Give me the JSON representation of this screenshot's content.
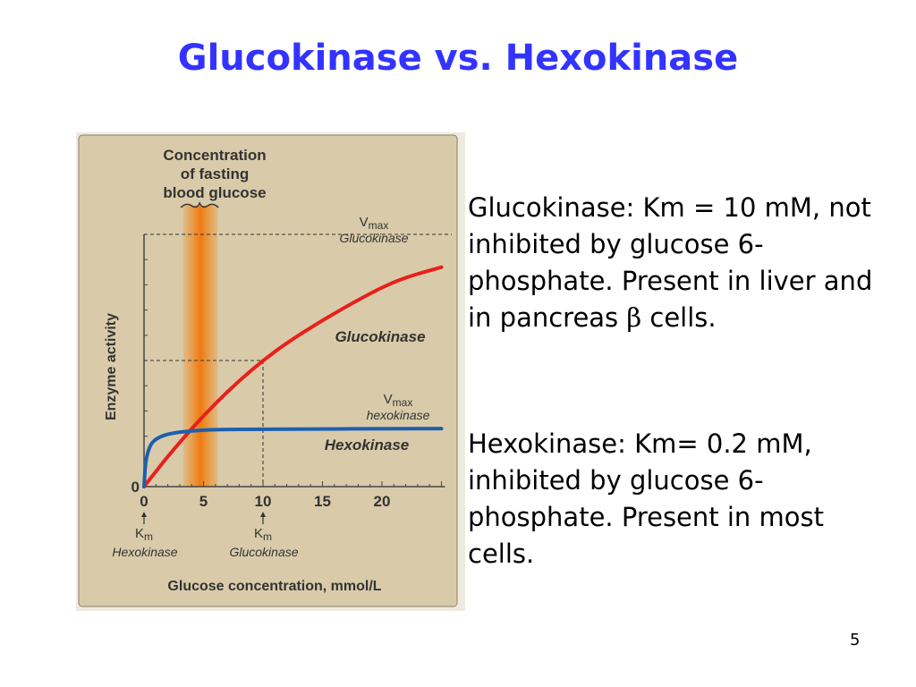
{
  "title": "Glucokinase vs. Hexokinase",
  "text": {
    "glucokinase": {
      "main": "Glucokinase: Km = 10 mM, not inhibited by glucose 6-phosphate.  Present in liver and in pancreas",
      "symbol": "β",
      "end": "cells."
    },
    "hexokinase": "Hexokinase:  Km= 0.2 mM, inhibited by glucose 6-phosphate.  Present in most cells."
  },
  "page_number": "5",
  "chart_data": {
    "type": "line",
    "xlabel": "Glucose concentration, mmol/L",
    "ylabel": "Enzyme activity",
    "x_ticks": [
      "0",
      "5",
      "10",
      "15",
      "20"
    ],
    "y_ticks": [
      "0"
    ],
    "xlim": [
      0,
      25
    ],
    "ylim": [
      0,
      1.1
    ],
    "grid": false,
    "background": "#d9cba9",
    "band": {
      "label": "Concentration of fasting blood glucose",
      "x_range": [
        3.3,
        6.2
      ],
      "color": "#f08a1a"
    },
    "annotations": {
      "vmax_gk": {
        "v": "V",
        "sub": "max",
        "name": "Glucokinase",
        "y": 1.0
      },
      "vmax_hk": {
        "v": "V",
        "sub": "max",
        "name": "hexokinase"
      },
      "km_hk": {
        "k": "K",
        "sub": "m",
        "name": "Hexokinase",
        "x": 0
      },
      "km_gk": {
        "k": "K",
        "sub": "m",
        "name": "Glucokinase",
        "x": 10,
        "y": 0.5
      }
    },
    "series": [
      {
        "name": "Glucokinase",
        "color": "#e8201c",
        "x": [
          0,
          1,
          2,
          4,
          6,
          8,
          10,
          12,
          15,
          18,
          20,
          22,
          25
        ],
        "y": [
          0,
          0.06,
          0.12,
          0.23,
          0.33,
          0.42,
          0.5,
          0.57,
          0.66,
          0.74,
          0.79,
          0.83,
          0.87
        ]
      },
      {
        "name": "Hexokinase",
        "color": "#1d5fb0",
        "x": [
          0,
          0.1,
          0.2,
          0.5,
          1,
          2,
          4,
          6,
          10,
          25
        ],
        "y": [
          0,
          0.08,
          0.115,
          0.164,
          0.19,
          0.21,
          0.222,
          0.226,
          0.228,
          0.23
        ]
      }
    ]
  }
}
